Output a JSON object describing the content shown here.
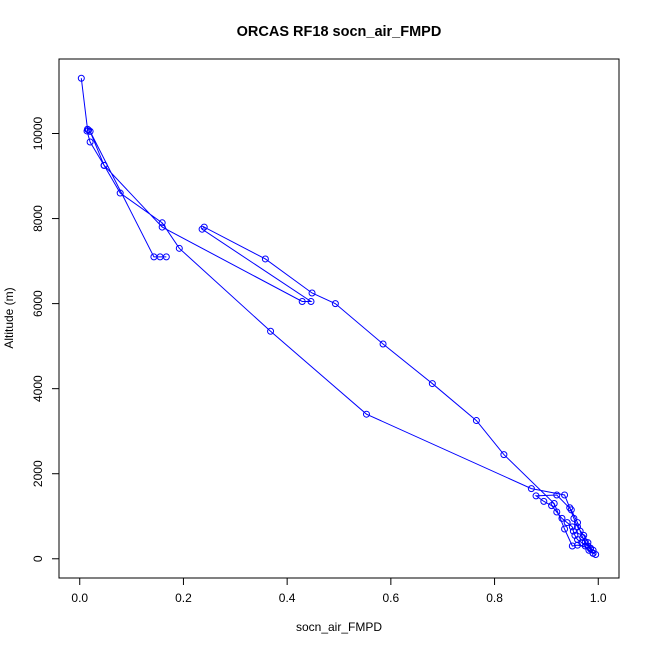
{
  "chart_data": {
    "type": "line",
    "title": "ORCAS RF18 socn_air_FMPD",
    "xlabel": "socn_air_FMPD",
    "ylabel": "Altitude (m)",
    "xlim": [
      0.0,
      1.0
    ],
    "ylim": [
      0,
      11300
    ],
    "xticks": [
      0.0,
      0.2,
      0.4,
      0.6,
      0.8,
      1.0
    ],
    "xtick_labels": [
      "0.0",
      "0.2",
      "0.4",
      "0.6",
      "0.8",
      "1.0"
    ],
    "yticks": [
      0,
      2000,
      4000,
      6000,
      8000,
      10000
    ],
    "ytick_labels": [
      "0",
      "2000",
      "4000",
      "6000",
      "8000",
      "10000"
    ],
    "grid": false,
    "legend": "none",
    "markers": "open-circle",
    "color": "#0000ff",
    "series": [
      {
        "x": [
          0.003,
          0.015,
          0.017,
          0.014,
          0.02,
          0.047,
          0.078,
          0.159,
          0.192,
          0.368,
          0.553,
          0.871,
          0.935,
          0.945,
          0.953,
          0.96,
          0.972,
          0.98,
          0.985,
          0.99,
          0.995,
          0.99,
          0.982,
          0.975,
          0.968,
          0.96,
          0.955,
          0.952,
          0.95,
          0.94,
          0.93,
          0.92,
          0.91,
          0.895,
          0.88,
          0.92,
          0.948,
          0.96,
          0.965,
          0.97,
          0.975,
          0.98,
          0.99,
          0.985,
          0.96,
          0.95,
          0.935,
          0.915,
          0.818,
          0.765,
          0.68,
          0.585,
          0.493,
          0.448,
          0.358,
          0.24,
          0.236,
          0.446,
          0.429,
          0.159,
          0.047,
          0.02,
          0.143,
          0.155,
          0.167
        ],
        "y": [
          11300,
          10100,
          10080,
          10060,
          9800,
          9250,
          8600,
          7900,
          7300,
          5350,
          3400,
          1650,
          1500,
          1200,
          950,
          750,
          550,
          380,
          230,
          130,
          100,
          130,
          200,
          300,
          380,
          450,
          550,
          650,
          750,
          850,
          950,
          1100,
          1250,
          1350,
          1480,
          1500,
          1150,
          850,
          650,
          500,
          400,
          300,
          200,
          250,
          320,
          300,
          700,
          1300,
          2450,
          3250,
          4120,
          5050,
          6000,
          6250,
          7050,
          7800,
          7750,
          6050,
          6050,
          7800,
          9250,
          10050,
          7100,
          7100,
          7100
        ]
      }
    ]
  }
}
